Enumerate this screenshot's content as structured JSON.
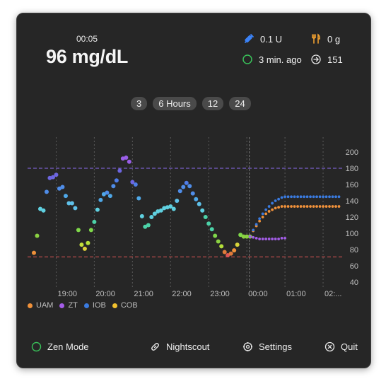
{
  "header": {
    "time": "00:05",
    "bg_value": "96 mg/dL",
    "insulin": "0.1 U",
    "carbs": "0 g",
    "last_update": "3 min. ago",
    "eventual_bg": "151"
  },
  "range_buttons": [
    "3",
    "6 Hours",
    "12",
    "24"
  ],
  "legend": [
    {
      "label": "UAM",
      "color": "#f0913a"
    },
    {
      "label": "ZT",
      "color": "#a45de8"
    },
    {
      "label": "IOB",
      "color": "#3a7be0"
    },
    {
      "label": "COB",
      "color": "#f2c12e"
    }
  ],
  "footer": {
    "zen_mode": "Zen Mode",
    "nightscout": "Nightscout",
    "settings": "Settings",
    "quit": "Quit"
  },
  "colors": {
    "target_high_line": "#8c6cf0",
    "target_low_line": "#e05555",
    "status_green": "#39c159",
    "insulin_icon": "#3b82f6",
    "carbs_icon": "#f0a030"
  },
  "icons": {
    "insulin": "syringe-icon",
    "carbs": "fork-knife-icon",
    "status": "circle-status-icon",
    "eventual": "arrow-circle-icon",
    "zen": "circle-icon",
    "nightscout": "link-icon",
    "settings": "gear-icon",
    "quit": "x-circle-icon"
  },
  "chart_data": {
    "type": "scatter",
    "x_unit": "hours",
    "x_range": [
      18.25,
      2.5
    ],
    "y_range": [
      40,
      200
    ],
    "y_ticks": [
      40,
      60,
      80,
      100,
      120,
      140,
      160,
      180,
      200
    ],
    "x_ticks": [
      "19:00",
      "20:00",
      "21:00",
      "22:00",
      "23:00",
      "00:00",
      "01:00",
      "02:..."
    ],
    "target_high": 180,
    "target_low": 71,
    "now": "00:05",
    "bg_series": {
      "name": "BG",
      "x": [
        "18:25",
        "18:30",
        "18:35",
        "18:40",
        "18:45",
        "18:50",
        "18:55",
        "19:00",
        "19:05",
        "19:10",
        "19:15",
        "19:20",
        "19:25",
        "19:30",
        "19:35",
        "19:40",
        "19:45",
        "19:50",
        "19:55",
        "20:00",
        "20:05",
        "20:10",
        "20:15",
        "20:20",
        "20:25",
        "20:30",
        "20:35",
        "20:40",
        "20:45",
        "20:50",
        "20:55",
        "21:00",
        "21:05",
        "21:10",
        "21:15",
        "21:20",
        "21:25",
        "21:30",
        "21:35",
        "21:40",
        "21:45",
        "21:50",
        "21:55",
        "22:00",
        "22:05",
        "22:10",
        "22:15",
        "22:20",
        "22:25",
        "22:30",
        "22:35",
        "22:40",
        "22:45",
        "22:50",
        "22:55",
        "23:00",
        "23:05",
        "23:10",
        "23:15",
        "23:20",
        "23:25",
        "23:30",
        "23:35",
        "23:40",
        "23:45",
        "23:50",
        "23:55",
        "00:00",
        "00:05"
      ],
      "y": [
        76,
        97,
        130,
        128,
        151,
        168,
        169,
        172,
        155,
        157,
        146,
        137,
        137,
        131,
        104,
        86,
        81,
        88,
        104,
        114,
        129,
        141,
        148,
        150,
        146,
        158,
        165,
        177,
        192,
        193,
        188,
        163,
        160,
        143,
        121,
        108,
        110,
        120,
        124,
        127,
        128,
        131,
        132,
        133,
        130,
        140,
        152,
        157,
        162,
        158,
        149,
        142,
        136,
        128,
        120,
        112,
        105,
        97,
        90,
        84,
        77,
        73,
        75,
        79,
        86,
        98,
        96,
        96,
        96
      ],
      "colors": [
        "#f0913a",
        "#8ad142",
        "#5fd0e0",
        "#5fd0e0",
        "#4f8de8",
        "#6d66e0",
        "#6d66e0",
        "#6d66e0",
        "#4f8de8",
        "#4f8de8",
        "#4fa8e8",
        "#5fc0e8",
        "#5fc0e8",
        "#5fc0e8",
        "#7fd84a",
        "#c4e03a",
        "#e0d23a",
        "#b4e03a",
        "#7fd84a",
        "#4cd2a8",
        "#5fd0e0",
        "#4fa8e8",
        "#4fa8e8",
        "#4f8de8",
        "#4fa8e8",
        "#4f8de8",
        "#4f7de8",
        "#6d66e0",
        "#9a5ee8",
        "#9a5ee8",
        "#9a5ee8",
        "#6d66e0",
        "#4f7de8",
        "#4fa8e8",
        "#5fd0e0",
        "#4cd2a8",
        "#4cd2a8",
        "#5fd0e0",
        "#5fd0e0",
        "#5fd0e0",
        "#5fd0e0",
        "#5fd0e0",
        "#5fd0e0",
        "#5fd0e0",
        "#5fd0e0",
        "#5fc0e8",
        "#4f8de8",
        "#4f8de8",
        "#4f7de8",
        "#4f8de8",
        "#4f8de8",
        "#4fa8e8",
        "#5fc0e8",
        "#5fd0e0",
        "#4cd2a8",
        "#4cd2a8",
        "#4cd2a8",
        "#7fd84a",
        "#8ad142",
        "#b4e03a",
        "#e07a3a",
        "#e05555",
        "#e07a3a",
        "#f0913a",
        "#d8d43a",
        "#7fd84a",
        "#8ad142",
        "#8ad142",
        "#8ad142"
      ]
    },
    "prediction_series": [
      {
        "name": "UAM",
        "color": "#f0913a",
        "start": "00:05",
        "step_min": 5,
        "y": [
          96,
          103,
          109,
          115,
          120,
          124,
          127,
          129,
          131,
          132,
          133,
          133,
          133,
          133,
          133,
          133,
          133,
          133,
          133,
          133,
          133,
          133,
          133,
          133,
          133,
          133,
          133,
          133,
          133
        ]
      },
      {
        "name": "IOB",
        "color": "#3a7be0",
        "start": "00:05",
        "step_min": 5,
        "y": [
          96,
          104,
          111,
          118,
          124,
          129,
          133,
          137,
          140,
          142,
          144,
          145,
          145,
          145,
          145,
          145,
          145,
          145,
          145,
          145,
          145,
          145,
          145,
          145,
          145,
          145,
          145,
          145,
          145
        ]
      },
      {
        "name": "ZT",
        "color": "#a45de8",
        "start": "00:05",
        "step_min": 5,
        "y": [
          96,
          95,
          94,
          93,
          93,
          93,
          93,
          93,
          93,
          93,
          94,
          94
        ]
      }
    ]
  }
}
